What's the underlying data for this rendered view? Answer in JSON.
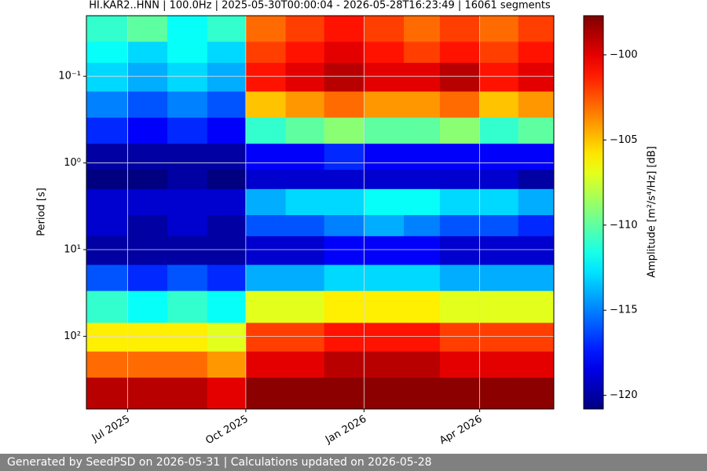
{
  "chart_data": {
    "type": "heatmap",
    "title": "HI.KAR2..HNN | 100.0Hz | 2025-05-30T00:00:04 - 2026-05-28T16:23:49 | 16061 segments",
    "y_label": "Period [s]",
    "colorbar_label": "Amplitude [m²/s⁴/Hz] [dB]",
    "colormap": "jet",
    "x_edges": [
      "2025-05-30T00:00:04",
      "2025-07-01",
      "2025-08-01",
      "2025-09-01",
      "2025-10-01",
      "2025-11-01",
      "2025-12-01",
      "2026-01-01",
      "2026-02-01",
      "2026-03-01",
      "2026-04-01",
      "2026-05-01",
      "2026-05-28T16:23:49"
    ],
    "y_edges": [
      0.02,
      0.04,
      0.07,
      0.15,
      0.3,
      0.6,
      1.2,
      2,
      4,
      7,
      15,
      30,
      70,
      150,
      300,
      690
    ],
    "z": [
      [
        -111,
        -110,
        -112,
        -111,
        -103,
        -102,
        -101,
        -102,
        -103,
        -102,
        -103,
        -102
      ],
      [
        -112,
        -113,
        -112,
        -113,
        -102,
        -101,
        -100,
        -101,
        -102,
        -101,
        -102,
        -101
      ],
      [
        -113,
        -114,
        -113,
        -114,
        -101,
        -100,
        -99,
        -100,
        -100,
        -99,
        -101,
        -100
      ],
      [
        -115,
        -116,
        -115,
        -116,
        -105,
        -104,
        -103,
        -104,
        -104,
        -103,
        -105,
        -104
      ],
      [
        -117,
        -118,
        -117,
        -118,
        -111,
        -110,
        -109,
        -110,
        -110,
        -109,
        -111,
        -110
      ],
      [
        -120,
        -120,
        -120,
        -120,
        -118,
        -118,
        -117,
        -118,
        -118,
        -118,
        -118,
        -118
      ],
      [
        -121,
        -121,
        -120,
        -121,
        -119,
        -119,
        -119,
        -119,
        -119,
        -119,
        -119,
        -120
      ],
      [
        -119,
        -119,
        -119,
        -119,
        -114,
        -113,
        -113,
        -112,
        -112,
        -113,
        -113,
        -114
      ],
      [
        -119,
        -120,
        -119,
        -120,
        -116,
        -116,
        -115,
        -114,
        -115,
        -116,
        -116,
        -117
      ],
      [
        -120,
        -120,
        -120,
        -120,
        -119,
        -119,
        -118,
        -118,
        -118,
        -119,
        -119,
        -119
      ],
      [
        -116,
        -117,
        -116,
        -117,
        -114,
        -114,
        -113,
        -113,
        -113,
        -114,
        -114,
        -114
      ],
      [
        -111,
        -112,
        -111,
        -112,
        -107,
        -107,
        -106,
        -106,
        -106,
        -107,
        -107,
        -107
      ],
      [
        -106,
        -106,
        -106,
        -107,
        -102,
        -102,
        -101,
        -101,
        -101,
        -102,
        -102,
        -102
      ],
      [
        -103,
        -103,
        -103,
        -104,
        -100,
        -100,
        -99,
        -99,
        -99,
        -100,
        -100,
        -100
      ],
      [
        -99,
        -99,
        -99,
        -100,
        -98,
        -98,
        -98,
        -98,
        -98,
        -98,
        -98,
        -98
      ]
    ],
    "xlim": [
      "2025-05-30T00:00:04",
      "2026-05-28T16:23:49"
    ],
    "xticks": [
      {
        "value": "2025-07-01",
        "label": "Jul 2025"
      },
      {
        "value": "2025-10-01",
        "label": "Oct 2025"
      },
      {
        "value": "2026-01-01",
        "label": "Jan 2026"
      },
      {
        "value": "2026-04-01",
        "label": "Apr 2026"
      }
    ],
    "ylim": [
      0.02,
      690
    ],
    "y_log": true,
    "y_inverted": true,
    "yticks": [
      {
        "value": 0.1,
        "label": "10⁻¹"
      },
      {
        "value": 1,
        "label": "10⁰"
      },
      {
        "value": 10,
        "label": "10¹"
      },
      {
        "value": 100,
        "label": "10²"
      }
    ],
    "clim": [
      -120.8,
      -97.7
    ],
    "cticks": [
      {
        "value": -120,
        "label": "−120"
      },
      {
        "value": -115,
        "label": "−115"
      },
      {
        "value": -110,
        "label": "−110"
      },
      {
        "value": -105,
        "label": "−105"
      },
      {
        "value": -100,
        "label": "−100"
      }
    ],
    "grid": true
  },
  "footer": "Generated by SeedPSD on 2026-05-31 | Calculations updated on 2026-05-28"
}
